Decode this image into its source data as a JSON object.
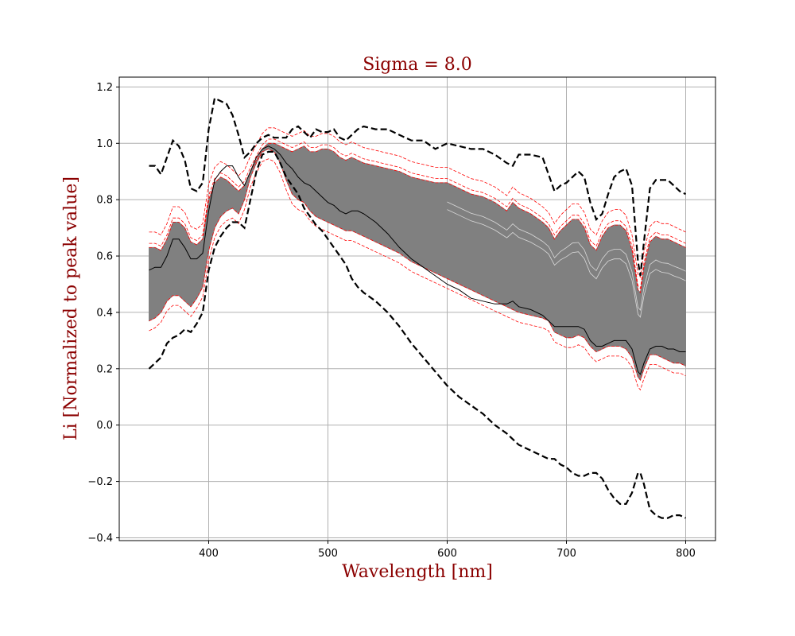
{
  "chart_data": {
    "type": "line",
    "title": "Sigma = 8.0",
    "xlabel": "Wavelength [nm]",
    "ylabel": "Li [Normalized to peak value]",
    "xlim": [
      325,
      825
    ],
    "ylim": [
      -0.41,
      1.235
    ],
    "xticks": [
      400,
      500,
      600,
      700,
      800
    ],
    "yticks": [
      -0.4,
      -0.2,
      0.0,
      0.2,
      0.4,
      0.6,
      0.8,
      1.0,
      1.2
    ],
    "grid": true,
    "colors": {
      "band": "#808080",
      "median": "#000000",
      "bounds": "#000000",
      "highlight": "#ff0000",
      "title": "#8b0000",
      "grid": "#b0b0b0"
    },
    "x": [
      350,
      355,
      360,
      365,
      370,
      375,
      380,
      385,
      390,
      395,
      400,
      405,
      410,
      415,
      420,
      425,
      430,
      435,
      440,
      445,
      450,
      455,
      460,
      465,
      470,
      475,
      480,
      485,
      490,
      495,
      500,
      505,
      510,
      515,
      520,
      525,
      530,
      540,
      550,
      560,
      570,
      580,
      590,
      600,
      610,
      620,
      630,
      640,
      650,
      655,
      660,
      670,
      680,
      685,
      690,
      695,
      700,
      705,
      710,
      715,
      720,
      725,
      730,
      735,
      740,
      745,
      750,
      755,
      760,
      762,
      765,
      770,
      775,
      780,
      785,
      790,
      795,
      800
    ],
    "series": [
      {
        "role": "band-upper",
        "values": [
          0.63,
          0.63,
          0.62,
          0.66,
          0.72,
          0.72,
          0.7,
          0.65,
          0.64,
          0.66,
          0.8,
          0.86,
          0.88,
          0.87,
          0.85,
          0.83,
          0.85,
          0.9,
          0.94,
          0.98,
          1.0,
          1.0,
          0.99,
          0.98,
          0.97,
          0.98,
          0.99,
          0.97,
          0.97,
          0.98,
          0.98,
          0.97,
          0.95,
          0.94,
          0.95,
          0.94,
          0.93,
          0.92,
          0.91,
          0.9,
          0.88,
          0.87,
          0.86,
          0.86,
          0.84,
          0.82,
          0.81,
          0.79,
          0.76,
          0.79,
          0.77,
          0.75,
          0.72,
          0.7,
          0.66,
          0.69,
          0.71,
          0.73,
          0.73,
          0.7,
          0.64,
          0.62,
          0.67,
          0.7,
          0.71,
          0.71,
          0.69,
          0.62,
          0.48,
          0.47,
          0.56,
          0.65,
          0.67,
          0.66,
          0.66,
          0.65,
          0.64,
          0.63
        ]
      },
      {
        "role": "band-lower",
        "values": [
          0.37,
          0.38,
          0.4,
          0.44,
          0.46,
          0.46,
          0.44,
          0.42,
          0.45,
          0.49,
          0.62,
          0.7,
          0.74,
          0.76,
          0.77,
          0.75,
          0.8,
          0.88,
          0.93,
          0.97,
          0.98,
          0.97,
          0.93,
          0.87,
          0.82,
          0.8,
          0.79,
          0.76,
          0.74,
          0.73,
          0.72,
          0.71,
          0.7,
          0.69,
          0.69,
          0.68,
          0.67,
          0.65,
          0.63,
          0.61,
          0.58,
          0.56,
          0.54,
          0.52,
          0.5,
          0.48,
          0.46,
          0.44,
          0.42,
          0.41,
          0.4,
          0.39,
          0.38,
          0.37,
          0.33,
          0.32,
          0.31,
          0.31,
          0.32,
          0.31,
          0.28,
          0.26,
          0.27,
          0.28,
          0.28,
          0.28,
          0.27,
          0.24,
          0.17,
          0.16,
          0.2,
          0.25,
          0.25,
          0.24,
          0.23,
          0.22,
          0.22,
          0.21
        ]
      },
      {
        "role": "median",
        "values": [
          0.55,
          0.56,
          0.56,
          0.6,
          0.66,
          0.66,
          0.63,
          0.59,
          0.59,
          0.61,
          0.76,
          0.87,
          0.9,
          0.92,
          0.92,
          0.88,
          0.85,
          0.9,
          0.95,
          0.98,
          0.99,
          0.98,
          0.96,
          0.93,
          0.91,
          0.88,
          0.86,
          0.85,
          0.83,
          0.81,
          0.79,
          0.78,
          0.76,
          0.75,
          0.76,
          0.76,
          0.75,
          0.72,
          0.68,
          0.63,
          0.59,
          0.56,
          0.53,
          0.5,
          0.48,
          0.45,
          0.44,
          0.43,
          0.43,
          0.44,
          0.42,
          0.41,
          0.39,
          0.37,
          0.35,
          0.35,
          0.35,
          0.35,
          0.35,
          0.34,
          0.3,
          0.28,
          0.28,
          0.29,
          0.3,
          0.3,
          0.3,
          0.27,
          0.19,
          0.18,
          0.22,
          0.27,
          0.28,
          0.28,
          0.27,
          0.27,
          0.26,
          0.26
        ]
      },
      {
        "role": "upper-bound",
        "values": [
          0.92,
          0.92,
          0.89,
          0.95,
          1.01,
          0.99,
          0.94,
          0.84,
          0.83,
          0.86,
          1.05,
          1.16,
          1.15,
          1.14,
          1.1,
          1.03,
          0.95,
          0.97,
          1.0,
          1.02,
          1.03,
          1.02,
          1.02,
          1.02,
          1.05,
          1.06,
          1.04,
          1.02,
          1.05,
          1.04,
          1.04,
          1.05,
          1.02,
          1.01,
          1.03,
          1.05,
          1.06,
          1.05,
          1.05,
          1.03,
          1.01,
          1.01,
          0.98,
          1.0,
          0.99,
          0.98,
          0.98,
          0.96,
          0.93,
          0.92,
          0.96,
          0.96,
          0.95,
          0.89,
          0.83,
          0.85,
          0.86,
          0.88,
          0.9,
          0.88,
          0.79,
          0.73,
          0.75,
          0.82,
          0.88,
          0.9,
          0.91,
          0.85,
          0.58,
          0.53,
          0.65,
          0.84,
          0.87,
          0.87,
          0.87,
          0.85,
          0.83,
          0.82
        ]
      },
      {
        "role": "lower-bound",
        "values": [
          0.2,
          0.22,
          0.24,
          0.29,
          0.31,
          0.32,
          0.34,
          0.33,
          0.36,
          0.4,
          0.55,
          0.63,
          0.67,
          0.7,
          0.72,
          0.72,
          0.7,
          0.8,
          0.9,
          0.96,
          0.97,
          0.97,
          0.93,
          0.88,
          0.85,
          0.82,
          0.77,
          0.74,
          0.71,
          0.69,
          0.66,
          0.63,
          0.6,
          0.57,
          0.52,
          0.49,
          0.47,
          0.44,
          0.4,
          0.35,
          0.29,
          0.24,
          0.19,
          0.14,
          0.1,
          0.07,
          0.04,
          0.0,
          -0.03,
          -0.05,
          -0.07,
          -0.09,
          -0.11,
          -0.12,
          -0.12,
          -0.14,
          -0.15,
          -0.17,
          -0.18,
          -0.18,
          -0.17,
          -0.17,
          -0.19,
          -0.23,
          -0.26,
          -0.28,
          -0.28,
          -0.24,
          -0.17,
          -0.17,
          -0.21,
          -0.3,
          -0.32,
          -0.33,
          -0.33,
          -0.32,
          -0.32,
          -0.33
        ]
      }
    ]
  }
}
